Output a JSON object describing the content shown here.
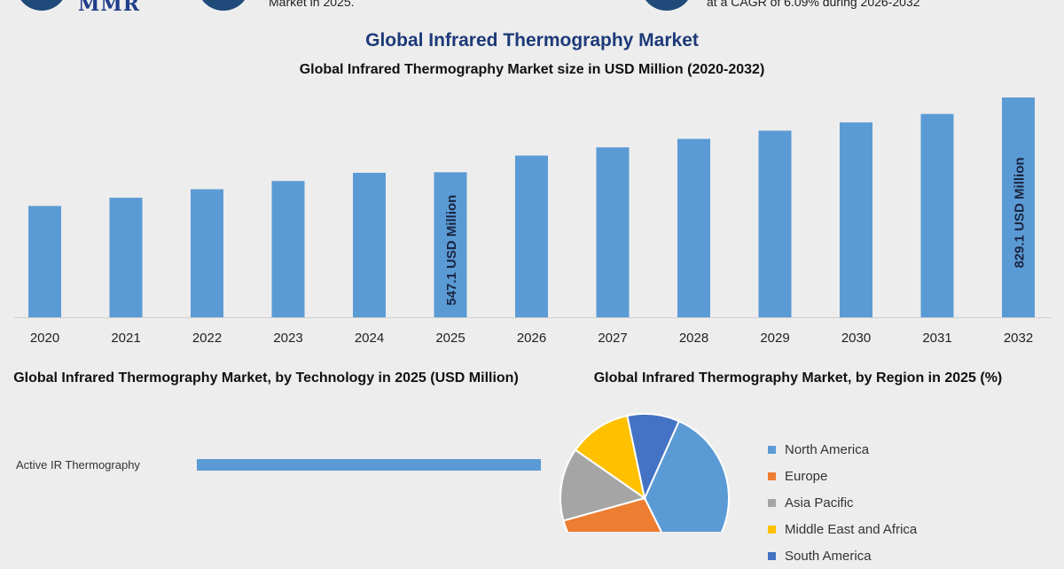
{
  "header": {
    "logo_text": "MMR",
    "left_snippet": "Market in 2025.",
    "right_snippet": "at a CAGR of 6.09% during 2026-2032"
  },
  "title": "Global Infrared Thermography Market",
  "colors": {
    "bar": "#5b9bd5",
    "title": "#1d3a78"
  },
  "chart_data": [
    {
      "type": "bar",
      "title": "Global Infrared Thermography Market size in USD Million (2020-2032)",
      "categories": [
        "2020",
        "2021",
        "2022",
        "2023",
        "2024",
        "2025",
        "2026",
        "2027",
        "2028",
        "2029",
        "2030",
        "2031",
        "2032"
      ],
      "values": [
        420,
        451,
        483,
        514,
        545,
        547.1,
        610,
        641,
        673,
        704,
        735,
        767,
        829.1
      ],
      "annotations": [
        {
          "category": "2025",
          "text": "547.1 USD Million"
        },
        {
          "category": "2032",
          "text": "829.1 USD Million"
        }
      ],
      "grid": false
    },
    {
      "type": "bar",
      "orientation": "horizontal",
      "title": "Global Infrared Thermography Market, by Technology in 2025 (USD Million)",
      "categories": [
        "Active IR Thermography"
      ],
      "values": [
        340
      ],
      "xlim": [
        0,
        400
      ]
    },
    {
      "type": "pie",
      "title": "Global Infrared Thermography Market, by Region in 2025 (%)",
      "labels": [
        "North America",
        "Europe",
        "Asia Pacific",
        "Middle East and Africa",
        "South America"
      ],
      "values": [
        36,
        28,
        14,
        12,
        10
      ],
      "colors": [
        "#5b9bd5",
        "#ed7d31",
        "#a5a5a5",
        "#ffc000",
        "#4472c4"
      ],
      "legend": "right"
    }
  ]
}
